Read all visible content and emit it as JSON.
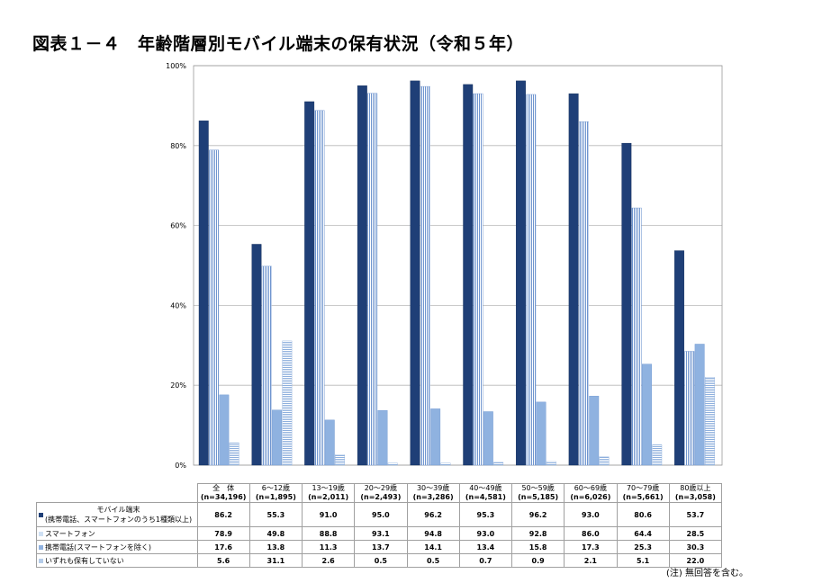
{
  "title": "図表１－４　年齢階層別モバイル端末の保有状況（令和５年）",
  "note": "(注) 無回答を含む。",
  "colors": {
    "mobile": "#1f3f77",
    "smartphone": "#cfe0f4",
    "feature_phone": "#8fb2e0",
    "none": "#b4cce9"
  },
  "chart_data": {
    "type": "bar",
    "ylim": [
      0,
      100
    ],
    "yticks": [
      "0%",
      "20%",
      "40%",
      "60%",
      "80%",
      "100%"
    ],
    "categories": [
      [
        "全　体",
        "(n=34,196)"
      ],
      [
        "6～12歳",
        "(n=1,895)"
      ],
      [
        "13～19歳",
        "(n=2,011)"
      ],
      [
        "20～29歳",
        "(n=2,493)"
      ],
      [
        "30～39歳",
        "(n=3,286)"
      ],
      [
        "40～49歳",
        "(n=4,581)"
      ],
      [
        "50～59歳",
        "(n=5,185)"
      ],
      [
        "60～69歳",
        "(n=6,026)"
      ],
      [
        "70～79歳",
        "(n=5,661)"
      ],
      [
        "80歳以上",
        "(n=3,058)"
      ]
    ],
    "series": [
      {
        "key": "mobile",
        "name": "モバイル端末",
        "name_sub": "(携帯電話、スマートフォンのうち1種類以上)",
        "values": [
          86.2,
          55.3,
          91.0,
          95.0,
          96.2,
          95.3,
          96.2,
          93.0,
          80.6,
          53.7
        ],
        "labels": [
          "86.2",
          "55.3",
          "91.0",
          "95.0",
          "96.2",
          "95.3",
          "96.2",
          "93.0",
          "80.6",
          "53.7"
        ]
      },
      {
        "key": "smartphone",
        "name": "スマートフォン",
        "values": [
          78.9,
          49.8,
          88.8,
          93.1,
          94.8,
          93.0,
          92.8,
          86.0,
          64.4,
          28.5
        ],
        "labels": [
          "78.9",
          "49.8",
          "88.8",
          "93.1",
          "94.8",
          "93.0",
          "92.8",
          "86.0",
          "64.4",
          "28.5"
        ]
      },
      {
        "key": "feature_phone",
        "name": "携帯電話(スマートフォンを除く)",
        "values": [
          17.6,
          13.8,
          11.3,
          13.7,
          14.1,
          13.4,
          15.8,
          17.3,
          25.3,
          30.3
        ],
        "labels": [
          "17.6",
          "13.8",
          "11.3",
          "13.7",
          "14.1",
          "13.4",
          "15.8",
          "17.3",
          "25.3",
          "30.3"
        ]
      },
      {
        "key": "none",
        "name": "いずれも保有していない",
        "values": [
          5.6,
          31.1,
          2.6,
          0.5,
          0.5,
          0.7,
          0.9,
          2.1,
          5.1,
          22.0
        ],
        "labels": [
          "5.6",
          "31.1",
          "2.6",
          "0.5",
          "0.5",
          "0.7",
          "0.9",
          "2.1",
          "5.1",
          "22.0"
        ]
      }
    ]
  }
}
